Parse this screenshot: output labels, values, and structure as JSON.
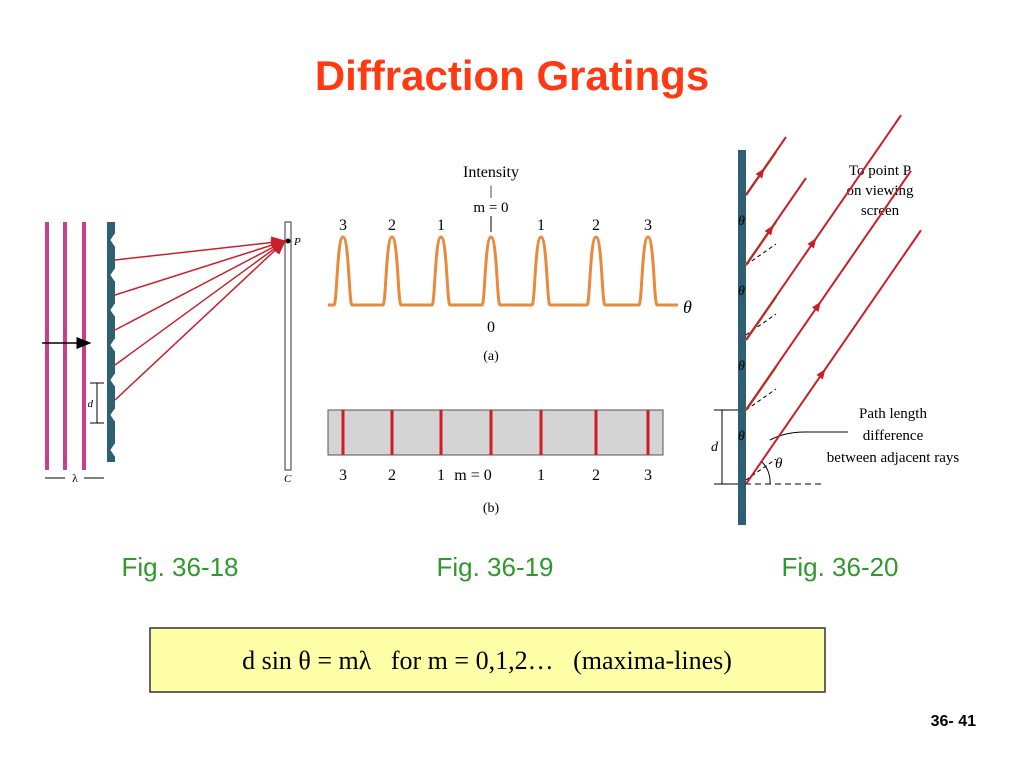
{
  "title": "Diffraction Gratings",
  "fig_18": {
    "caption": "Fig. 36-18",
    "point": "P",
    "screen": "C",
    "spacing": "d",
    "wavelength": "λ"
  },
  "fig_19": {
    "caption": "Fig. 36-19",
    "intensity": "Intensity",
    "bar": "|",
    "center": "m = 0",
    "peak_labels": [
      "3",
      "2",
      "1",
      "1",
      "2",
      "3"
    ],
    "origin": "0",
    "axis": "θ",
    "panel_a": "(a)",
    "fringe_labels": [
      "3",
      "2",
      "1",
      "m = 0",
      "1",
      "2",
      "3"
    ],
    "panel_b": "(b)"
  },
  "fig_20": {
    "caption": "Fig. 36-20",
    "target": [
      "To point P",
      "on viewing",
      "screen"
    ],
    "angle_labels": [
      "θ",
      "θ",
      "θ",
      "θ",
      "θ"
    ],
    "spacing": "d",
    "path": [
      "Path length",
      "difference",
      "between adjacent rays"
    ]
  },
  "equation": "d sin θ = mλ   for m = 0,1,2…   (maxima-lines)",
  "page_number": "36- 41"
}
